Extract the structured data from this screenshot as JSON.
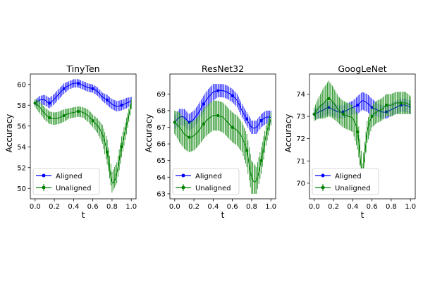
{
  "chart_data": [
    {
      "type": "line",
      "title": "TinyTen",
      "xlabel": "t",
      "ylabel": "Accuracy",
      "xlim": [
        -0.05,
        1.05
      ],
      "ylim": [
        49,
        61
      ],
      "xticks": [
        0.0,
        0.2,
        0.4,
        0.6,
        0.8,
        1.0
      ],
      "xtick_labels": [
        "0.0",
        "0.2",
        "0.4",
        "0.6",
        "0.8",
        "1.0"
      ],
      "yticks": [
        50,
        52,
        54,
        56,
        58,
        60
      ],
      "ytick_labels": [
        "50",
        "52",
        "54",
        "56",
        "58",
        "60"
      ],
      "legend_position": "lower-left",
      "x": [
        0.0,
        0.05,
        0.1,
        0.15,
        0.2,
        0.25,
        0.3,
        0.35,
        0.4,
        0.45,
        0.5,
        0.55,
        0.6,
        0.65,
        0.7,
        0.75,
        0.8,
        0.85,
        0.9,
        0.95,
        1.0
      ],
      "series": [
        {
          "name": "Aligned",
          "color": "#0000ff",
          "values": [
            58.2,
            58.5,
            58.5,
            58.2,
            58.6,
            59.1,
            59.6,
            59.9,
            60.1,
            60.1,
            59.9,
            59.7,
            59.6,
            59.3,
            58.8,
            58.5,
            58.1,
            57.9,
            58.0,
            58.2,
            58.4
          ],
          "err": [
            0.3,
            0.4,
            0.5,
            0.5,
            0.5,
            0.5,
            0.5,
            0.4,
            0.4,
            0.4,
            0.4,
            0.4,
            0.4,
            0.4,
            0.4,
            0.5,
            0.5,
            0.5,
            0.5,
            0.5,
            0.4
          ]
        },
        {
          "name": "Unaligned",
          "color": "#008000",
          "values": [
            58.2,
            57.8,
            57.2,
            56.8,
            56.7,
            56.8,
            57.0,
            57.2,
            57.3,
            57.4,
            57.3,
            57.0,
            56.5,
            56.0,
            55.2,
            53.5,
            50.6,
            51.5,
            54.0,
            56.0,
            58.1
          ],
          "err": [
            0.4,
            0.6,
            0.6,
            0.6,
            0.6,
            0.6,
            0.6,
            0.5,
            0.5,
            0.5,
            0.5,
            0.6,
            0.6,
            0.7,
            0.9,
            1.2,
            1.0,
            1.0,
            1.0,
            0.8,
            0.5
          ]
        }
      ]
    },
    {
      "type": "line",
      "title": "ResNet32",
      "xlabel": "t",
      "ylabel": "Accuracy",
      "xlim": [
        -0.05,
        1.05
      ],
      "ylim": [
        62.7,
        70.2
      ],
      "xticks": [
        0.0,
        0.2,
        0.4,
        0.6,
        0.8,
        1.0
      ],
      "xtick_labels": [
        "0.0",
        "0.2",
        "0.4",
        "0.6",
        "0.8",
        "1.0"
      ],
      "yticks": [
        63,
        64,
        65,
        66,
        67,
        68,
        69
      ],
      "ytick_labels": [
        "63",
        "64",
        "65",
        "66",
        "67",
        "68",
        "69"
      ],
      "legend_position": "lower-left",
      "x": [
        0.0,
        0.05,
        0.1,
        0.15,
        0.2,
        0.25,
        0.3,
        0.35,
        0.4,
        0.45,
        0.5,
        0.55,
        0.6,
        0.65,
        0.7,
        0.75,
        0.8,
        0.85,
        0.9,
        0.95,
        1.0
      ],
      "series": [
        {
          "name": "Aligned",
          "color": "#0000ff",
          "values": [
            67.3,
            67.6,
            67.6,
            67.3,
            67.5,
            67.9,
            68.4,
            68.8,
            69.1,
            69.2,
            69.2,
            69.1,
            68.9,
            68.6,
            68.0,
            67.5,
            67.0,
            67.0,
            67.4,
            67.6,
            67.6
          ],
          "err": [
            0.4,
            0.5,
            0.5,
            0.5,
            0.5,
            0.5,
            0.5,
            0.5,
            0.5,
            0.4,
            0.4,
            0.4,
            0.4,
            0.4,
            0.4,
            0.4,
            0.4,
            0.4,
            0.4,
            0.4,
            0.4
          ]
        },
        {
          "name": "Unaligned",
          "color": "#008000",
          "values": [
            67.3,
            67.0,
            66.6,
            66.4,
            66.5,
            66.8,
            67.2,
            67.5,
            67.7,
            67.7,
            67.6,
            67.3,
            67.0,
            66.8,
            66.4,
            65.6,
            64.0,
            63.8,
            65.0,
            66.5,
            67.5
          ],
          "err": [
            0.7,
            0.9,
            0.9,
            0.9,
            0.9,
            0.9,
            0.9,
            0.9,
            0.9,
            0.9,
            0.9,
            0.9,
            0.9,
            0.9,
            0.9,
            1.0,
            1.0,
            0.8,
            0.8,
            0.6,
            0.4
          ]
        }
      ]
    },
    {
      "type": "line",
      "title": "GoogLeNet",
      "xlabel": "t",
      "ylabel": "Accuracy",
      "xlim": [
        -0.05,
        1.05
      ],
      "ylim": [
        69.3,
        74.9
      ],
      "xticks": [
        0.0,
        0.2,
        0.4,
        0.6,
        0.8,
        1.0
      ],
      "xtick_labels": [
        "0.0",
        "0.2",
        "0.4",
        "0.6",
        "0.8",
        "1.0"
      ],
      "yticks": [
        70,
        71,
        72,
        73,
        74
      ],
      "ytick_labels": [
        "70",
        "71",
        "72",
        "73",
        "74"
      ],
      "legend_position": "lower-left",
      "x": [
        0.0,
        0.05,
        0.1,
        0.15,
        0.2,
        0.25,
        0.3,
        0.35,
        0.4,
        0.45,
        0.5,
        0.55,
        0.6,
        0.65,
        0.7,
        0.75,
        0.8,
        0.85,
        0.9,
        0.95,
        1.0
      ],
      "series": [
        {
          "name": "Aligned",
          "color": "#0000ff",
          "values": [
            73.1,
            73.2,
            73.3,
            73.4,
            73.3,
            73.2,
            73.2,
            73.3,
            73.4,
            73.5,
            73.7,
            73.6,
            73.4,
            73.3,
            73.2,
            73.2,
            73.3,
            73.4,
            73.5,
            73.5,
            73.4
          ],
          "err": [
            0.2,
            0.3,
            0.3,
            0.3,
            0.3,
            0.3,
            0.3,
            0.3,
            0.3,
            0.4,
            0.4,
            0.4,
            0.4,
            0.3,
            0.3,
            0.3,
            0.3,
            0.3,
            0.3,
            0.3,
            0.3
          ]
        },
        {
          "name": "Unaligned",
          "color": "#008000",
          "values": [
            73.1,
            73.4,
            73.6,
            73.8,
            73.6,
            73.3,
            73.1,
            73.0,
            72.9,
            72.3,
            70.5,
            72.3,
            73.0,
            73.2,
            73.3,
            73.5,
            73.5,
            73.6,
            73.6,
            73.6,
            73.5
          ],
          "err": [
            0.3,
            0.5,
            0.7,
            0.8,
            0.7,
            0.6,
            0.6,
            0.6,
            0.6,
            0.8,
            0.4,
            0.5,
            0.5,
            0.5,
            0.5,
            0.5,
            0.5,
            0.5,
            0.5,
            0.5,
            0.4
          ]
        }
      ]
    }
  ]
}
